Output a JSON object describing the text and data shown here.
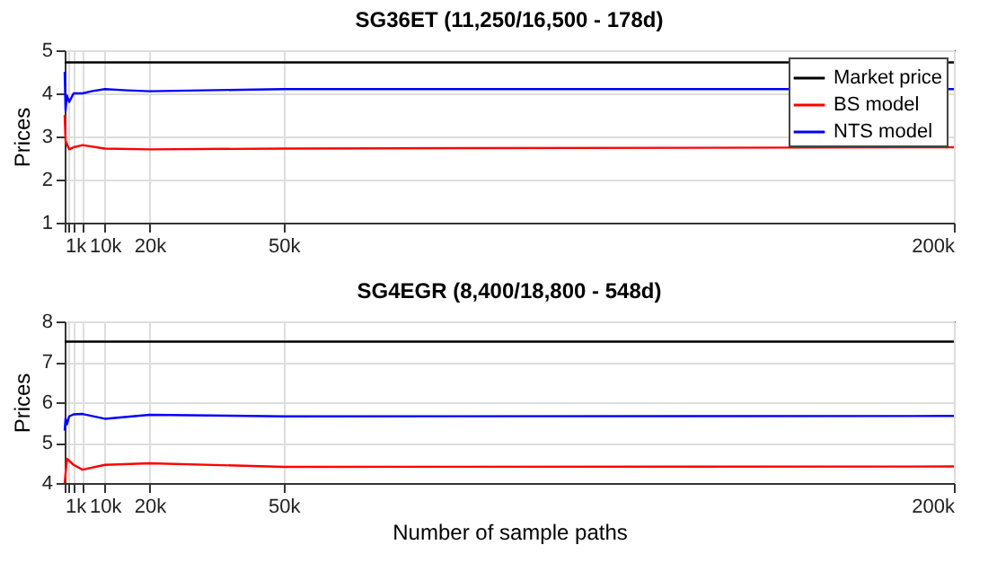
{
  "chart_data": [
    {
      "type": "line",
      "title": "SG36ET (11,250/16,500 - 178d)",
      "ylabel": "Prices",
      "xlim": [
        1000,
        200000
      ],
      "ylim": [
        1,
        5
      ],
      "xticks": [
        {
          "value": 1000,
          "label": "1k"
        },
        {
          "value": 2000,
          "label": null
        },
        {
          "value": 3000,
          "label": null
        },
        {
          "value": 5000,
          "label": null
        },
        {
          "value": 10000,
          "label": "10k"
        },
        {
          "value": 20000,
          "label": "20k"
        },
        {
          "value": 50000,
          "label": "50k"
        },
        {
          "value": 200000,
          "label": "200k"
        }
      ],
      "yticks": [
        1,
        2,
        3,
        4,
        5
      ],
      "grid": true,
      "legend": "top right",
      "series": [
        {
          "name": "Market price",
          "color": "#000000",
          "x": [
            1000,
            200000
          ],
          "values": [
            4.72,
            4.72
          ]
        },
        {
          "name": "BS model",
          "color": "#ff0000",
          "x": [
            1000,
            1200,
            2000,
            3000,
            5000,
            10000,
            20000,
            50000,
            200000
          ],
          "values": [
            3.5,
            2.9,
            2.7,
            2.75,
            2.8,
            2.72,
            2.7,
            2.72,
            2.75
          ]
        },
        {
          "name": "NTS model",
          "color": "#0000ff",
          "x": [
            1000,
            1200,
            1500,
            2000,
            3000,
            5000,
            7000,
            10000,
            15000,
            20000,
            50000,
            100000,
            200000
          ],
          "values": [
            4.5,
            3.6,
            3.95,
            3.8,
            4.0,
            4.0,
            4.05,
            4.1,
            4.07,
            4.05,
            4.1,
            4.1,
            4.1
          ]
        }
      ]
    },
    {
      "type": "line",
      "title": "SG4EGR (8,400/18,800 - 548d)",
      "xlabel": "Number of sample paths",
      "ylabel": "Prices",
      "xlim": [
        1000,
        200000
      ],
      "ylim": [
        4,
        8
      ],
      "xticks": [
        {
          "value": 1000,
          "label": "1k"
        },
        {
          "value": 2000,
          "label": null
        },
        {
          "value": 3000,
          "label": null
        },
        {
          "value": 5000,
          "label": null
        },
        {
          "value": 10000,
          "label": "10k"
        },
        {
          "value": 20000,
          "label": "20k"
        },
        {
          "value": 50000,
          "label": "50k"
        },
        {
          "value": 200000,
          "label": "200k"
        }
      ],
      "yticks": [
        4,
        5,
        6,
        7,
        8
      ],
      "grid": true,
      "legend": "top right",
      "series": [
        {
          "name": "Market price",
          "color": "#000000",
          "x": [
            1000,
            200000
          ],
          "values": [
            7.5,
            7.5
          ]
        },
        {
          "name": "BS model",
          "color": "#ff0000",
          "x": [
            1000,
            1500,
            3000,
            5000,
            10000,
            20000,
            50000,
            200000
          ],
          "values": [
            4.0,
            4.6,
            4.45,
            4.33,
            4.45,
            4.49,
            4.4,
            4.41
          ]
        },
        {
          "name": "NTS model",
          "color": "#0000ff",
          "x": [
            1000,
            1200,
            1500,
            2000,
            3000,
            5000,
            10000,
            20000,
            50000,
            200000
          ],
          "values": [
            5.3,
            5.6,
            5.45,
            5.65,
            5.7,
            5.71,
            5.59,
            5.69,
            5.65,
            5.66
          ]
        }
      ]
    }
  ]
}
